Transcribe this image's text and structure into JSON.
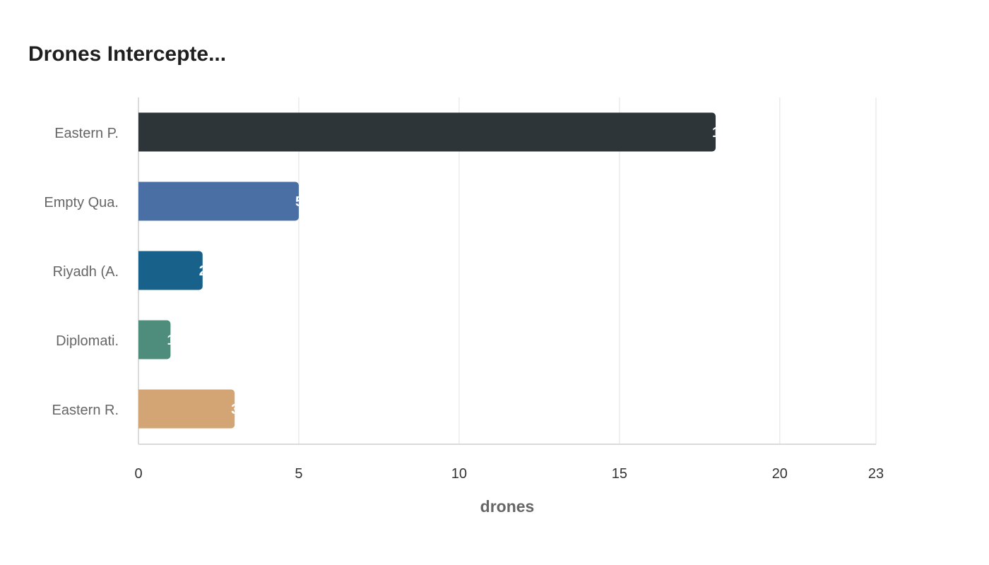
{
  "chart_data": {
    "type": "bar",
    "orientation": "horizontal",
    "title": "Drones Intercepte...",
    "xlabel": "drones",
    "ylabel": "",
    "categories": [
      "Eastern P.",
      "Empty Qua.",
      "Riyadh (A.",
      "Diplomati.",
      "Eastern R."
    ],
    "values": [
      18,
      5,
      2,
      1,
      3
    ],
    "colors": [
      "#2d3538",
      "#4a6fa5",
      "#17618a",
      "#4e8c7b",
      "#d4a574"
    ],
    "xlim": [
      0,
      23
    ],
    "xticks": [
      "0",
      "5",
      "10",
      "15",
      "20",
      "23"
    ],
    "grid": true
  }
}
